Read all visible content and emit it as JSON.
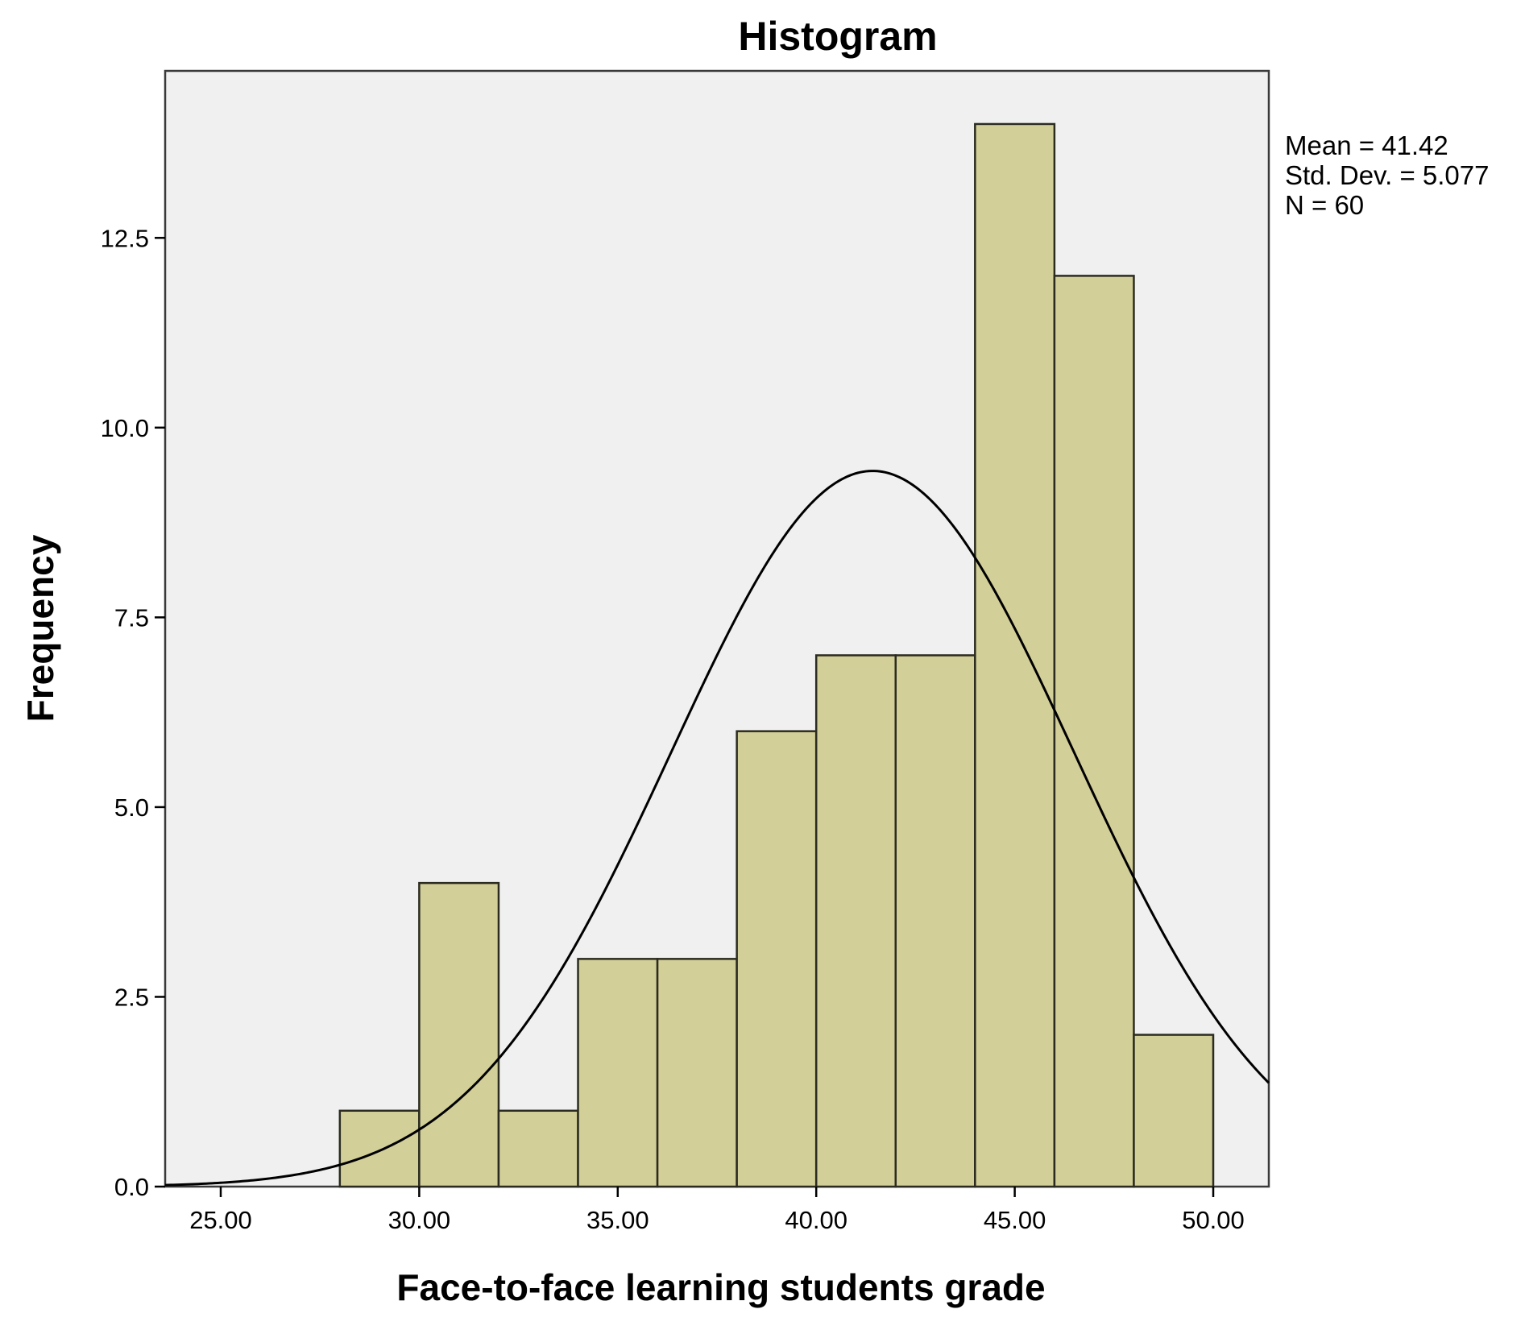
{
  "chart_data": {
    "type": "bar",
    "title": "Histogram",
    "xlabel": "Face-to-face learning students grade",
    "ylabel": "Frequency",
    "xlim": [
      23.6,
      51.4
    ],
    "ylim": [
      0,
      14.7
    ],
    "bin_edges": [
      28,
      30,
      32,
      34,
      36,
      38,
      40,
      42,
      44,
      46,
      48,
      50
    ],
    "values": [
      1,
      4,
      1,
      3,
      3,
      6,
      7,
      7,
      14,
      12,
      2
    ],
    "x_ticks": [
      25,
      30,
      35,
      40,
      45,
      50
    ],
    "x_tick_labels": [
      "25.00",
      "30.00",
      "35.00",
      "40.00",
      "45.00",
      "50.00"
    ],
    "y_ticks": [
      0,
      2.5,
      5,
      7.5,
      10,
      12.5
    ],
    "y_tick_labels": [
      "0.0",
      "2.5",
      "5.0",
      "7.5",
      "10.0",
      "12.5"
    ],
    "normal_curve": {
      "mean": 41.42,
      "std": 5.077,
      "n": 60,
      "bin_width": 2
    },
    "stats": [
      "Mean = 41.42",
      "Std. Dev. = 5.077",
      "N = 60"
    ],
    "grid": false,
    "colors": {
      "bar_fill": "#d3cf98",
      "bar_stroke": "#2b2b20",
      "plot_background": "#f0f0f0",
      "curve": "#000000"
    }
  }
}
